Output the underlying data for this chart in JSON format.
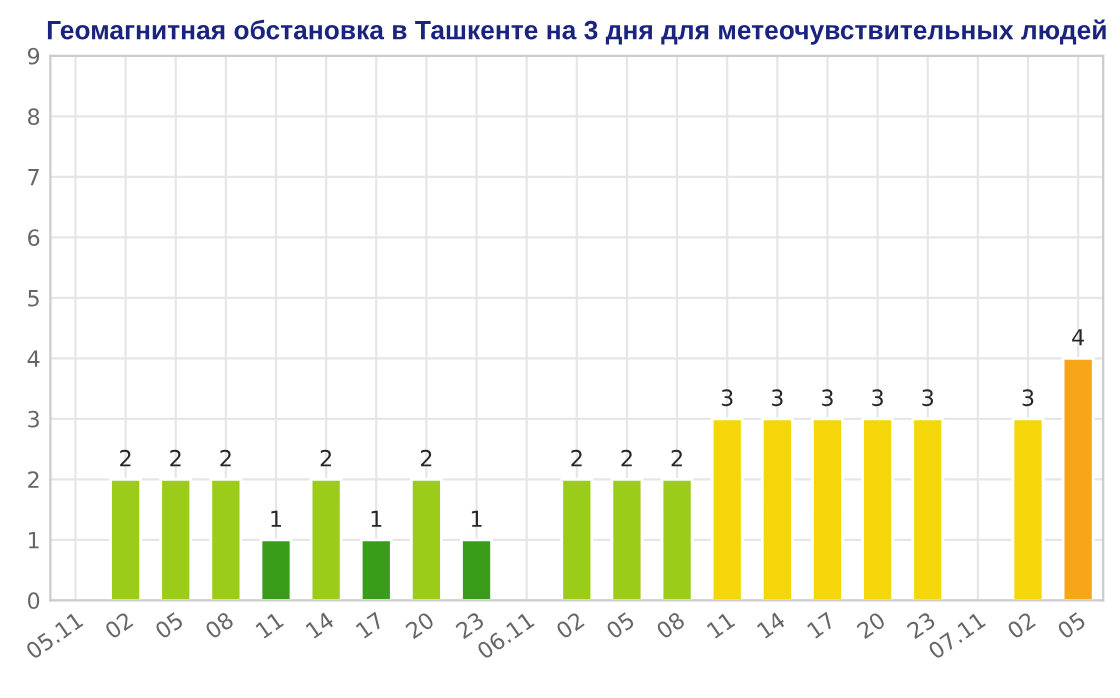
{
  "chart_data": {
    "type": "bar",
    "title": "Геомагнитная обстановка в Ташкенте на 3 дня для метеочувствительных людей",
    "categories": [
      "05.11",
      "02",
      "05",
      "08",
      "11",
      "14",
      "17",
      "20",
      "23",
      "06.11",
      "02",
      "05",
      "08",
      "11",
      "14",
      "17",
      "20",
      "23",
      "07.11",
      "02",
      "05"
    ],
    "values": [
      null,
      2,
      2,
      2,
      1,
      2,
      1,
      2,
      1,
      null,
      2,
      2,
      2,
      3,
      3,
      3,
      3,
      3,
      null,
      3,
      4
    ],
    "colors": [
      "#7cbf1a",
      "#9ccc1a",
      "#9ccc1a",
      "#9ccc1a",
      "#3a9d1a",
      "#9ccc1a",
      "#3a9d1a",
      "#9ccc1a",
      "#3a9d1a",
      "#7cbf1a",
      "#9ccc1a",
      "#9ccc1a",
      "#9ccc1a",
      "#f5d60a",
      "#f5d60a",
      "#f5d60a",
      "#f5d60a",
      "#f5d60a",
      "#7cbf1a",
      "#f5d60a",
      "#f9a51a"
    ],
    "ylim": [
      0,
      9
    ],
    "yticks": [
      0,
      1,
      2,
      3,
      4,
      5,
      6,
      7,
      8,
      9
    ],
    "grid": true,
    "data_labels": true
  }
}
